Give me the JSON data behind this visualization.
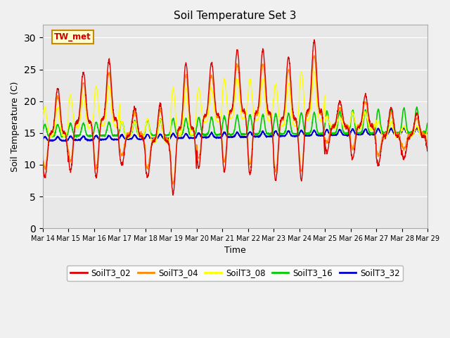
{
  "title": "Soil Temperature Set 3",
  "xlabel": "Time",
  "ylabel": "Soil Temperature (C)",
  "ylim": [
    0,
    32
  ],
  "yticks": [
    0,
    5,
    10,
    15,
    20,
    25,
    30
  ],
  "annotation": "TW_met",
  "plot_bg": "#e8e8e8",
  "fig_bg": "#f0f0f0",
  "series_colors": {
    "SoilT3_02": "#dd0000",
    "SoilT3_04": "#ff8800",
    "SoilT3_08": "#ffff00",
    "SoilT3_16": "#00cc00",
    "SoilT3_32": "#0000cc"
  },
  "xtick_labels": [
    "Mar 14",
    "Mar 15",
    "Mar 16",
    "Mar 17",
    "Mar 18",
    "Mar 19",
    "Mar 20",
    "Mar 21",
    "Mar 22",
    "Mar 23",
    "Mar 24",
    "Mar 25",
    "Mar 26",
    "Mar 27",
    "Mar 28",
    "Mar 29"
  ]
}
